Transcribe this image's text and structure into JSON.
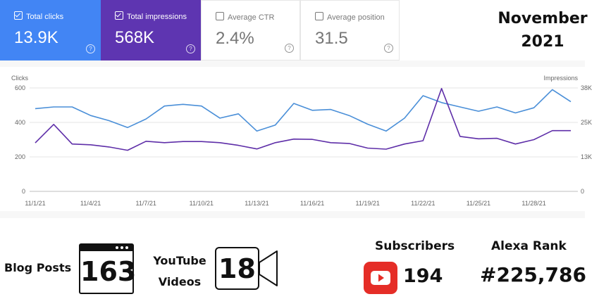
{
  "metrics": [
    {
      "label": "Total clicks",
      "value": "13.9K",
      "checked": true
    },
    {
      "label": "Total impressions",
      "value": "568K",
      "checked": true
    },
    {
      "label": "Average CTR",
      "value": "2.4%",
      "checked": false
    },
    {
      "label": "Average position",
      "value": "31.5",
      "checked": false
    }
  ],
  "month_line1": "November",
  "month_line2": "2021",
  "chart_data": {
    "type": "line",
    "x": [
      "11/1/21",
      "11/2/21",
      "11/3/21",
      "11/4/21",
      "11/5/21",
      "11/6/21",
      "11/7/21",
      "11/8/21",
      "11/9/21",
      "11/10/21",
      "11/11/21",
      "11/12/21",
      "11/13/21",
      "11/14/21",
      "11/15/21",
      "11/16/21",
      "11/17/21",
      "11/18/21",
      "11/19/21",
      "11/20/21",
      "11/21/21",
      "11/22/21",
      "11/23/21",
      "11/24/21",
      "11/25/21",
      "11/26/21",
      "11/27/21",
      "11/28/21",
      "11/29/21",
      "11/30/21"
    ],
    "xticks": [
      "11/1/21",
      "11/4/21",
      "11/7/21",
      "11/10/21",
      "11/13/21",
      "11/16/21",
      "11/19/21",
      "11/22/21",
      "11/25/21",
      "11/28/21"
    ],
    "ylabel_left": "Clicks",
    "ylabel_right": "Impressions",
    "yticks_left": [
      "0",
      "200",
      "400",
      "600"
    ],
    "yticks_right": [
      "0",
      "13K",
      "25K",
      "38K"
    ],
    "ylim_left": [
      0,
      600
    ],
    "ylim_right": [
      0,
      38000
    ],
    "grid": true,
    "series": [
      {
        "name": "Clicks",
        "axis": "left",
        "color": "#4a8fd8",
        "values": [
          480,
          490,
          490,
          440,
          410,
          370,
          420,
          495,
          505,
          495,
          425,
          450,
          350,
          385,
          510,
          470,
          475,
          440,
          390,
          350,
          425,
          555,
          515,
          490,
          465,
          490,
          455,
          485,
          590,
          520
        ]
      },
      {
        "name": "Impressions",
        "axis": "right",
        "color": "#5e2ea8",
        "values": [
          17800,
          24600,
          17400,
          17100,
          16300,
          15100,
          18400,
          17900,
          18300,
          18300,
          17900,
          16900,
          15600,
          17900,
          19200,
          19100,
          17900,
          17600,
          15900,
          15500,
          17400,
          18600,
          37800,
          20200,
          19300,
          19500,
          17400,
          19000,
          22300,
          22300
        ]
      }
    ]
  },
  "stats": {
    "blog_label": "Blog Posts",
    "blog_count": "163",
    "yt_label_1": "YouTube",
    "yt_label_2": "Videos",
    "yt_count": "18",
    "subs_label": "Subscribers",
    "subs_count": "194",
    "alexa_label": "Alexa Rank",
    "alexa_value": "#225,786"
  },
  "colors": {
    "clicks": "#4285f4",
    "impressions": "#5e35b1",
    "youtube": "#e52d27"
  }
}
